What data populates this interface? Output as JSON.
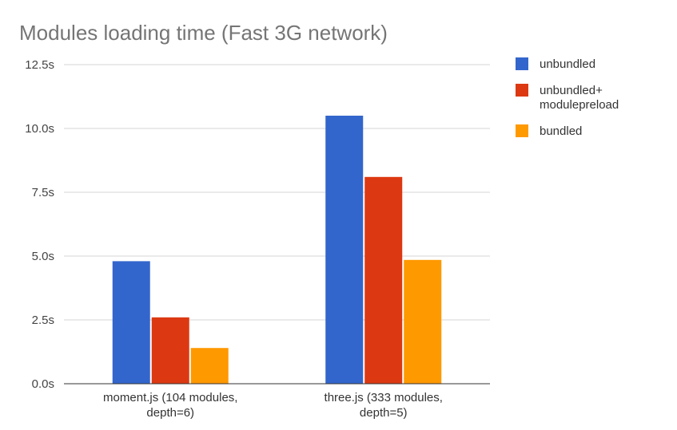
{
  "chart_data": {
    "type": "bar",
    "title": "Modules loading time (Fast 3G network)",
    "categories": [
      [
        "moment.js (104 modules,",
        "depth=6)"
      ],
      [
        "three.js (333 modules,",
        "depth=5)"
      ]
    ],
    "series": [
      {
        "name": "unbundled",
        "name_lines": [
          "unbundled"
        ],
        "color": "#3366cc",
        "values": [
          4.8,
          10.5
        ]
      },
      {
        "name": "unbundled+ modulepreload",
        "name_lines": [
          "unbundled+",
          "modulepreload"
        ],
        "color": "#dc3912",
        "values": [
          2.6,
          8.1
        ]
      },
      {
        "name": "bundled",
        "name_lines": [
          "bundled"
        ],
        "color": "#ff9900",
        "values": [
          1.4,
          4.85
        ]
      }
    ],
    "yticks": [
      "0.0s",
      "2.5s",
      "5.0s",
      "7.5s",
      "10.0s",
      "12.5s"
    ],
    "ylim": [
      0,
      12.5
    ],
    "grid": true,
    "legend": "right",
    "xlabel": "",
    "ylabel": ""
  }
}
